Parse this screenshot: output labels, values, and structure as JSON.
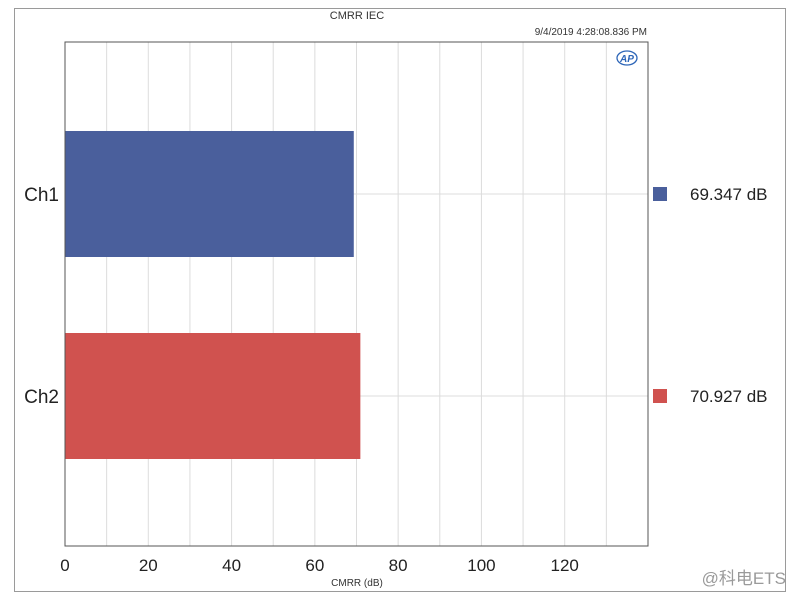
{
  "chart_data": {
    "type": "bar",
    "orientation": "horizontal",
    "title": "CMRR IEC",
    "timestamp": "9/4/2019 4:28:08.836 PM",
    "xlabel": "CMRR (dB)",
    "ylabel": "",
    "xlim": [
      0,
      140
    ],
    "xticks": [
      0,
      20,
      40,
      60,
      80,
      100,
      120
    ],
    "categories": [
      "Ch1",
      "Ch2"
    ],
    "values": [
      69.347,
      70.927
    ],
    "value_labels": [
      "69.347  dB",
      "70.927  dB"
    ],
    "colors": [
      "#4a5f9c",
      "#d0524f"
    ],
    "grid": true,
    "legend_position": "right"
  },
  "logo_text": "AP",
  "watermark": "@科电ETS"
}
